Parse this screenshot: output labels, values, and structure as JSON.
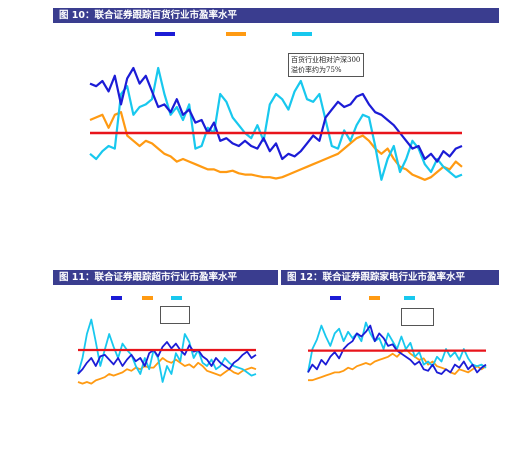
{
  "figures": {
    "main": {
      "title": "图 10：联合证券跟踪百货行业市盈率水平",
      "annotation": "百货行业相对沪深300溢价率约为75%"
    },
    "left": {
      "title": "图 11：联合证券跟踪超市行业市盈率水平",
      "annotation": ""
    },
    "right": {
      "title": "图 12：联合证券跟踪家电行业市盈率水平",
      "annotation": ""
    }
  },
  "colors": {
    "title_bg": "#3a3d8f",
    "blue": "#1c1cd6",
    "orange": "#ff9a12",
    "cyan": "#18c8ee",
    "red": "#e8141b"
  },
  "chart_data": [
    {
      "type": "line",
      "title": "图 10：联合证券跟踪百货行业市盈率水平",
      "x": [
        0,
        1,
        2,
        3,
        4,
        5,
        6,
        7,
        8,
        9,
        10,
        11,
        12,
        13,
        14,
        15,
        16,
        17,
        18,
        19,
        20,
        21,
        22,
        23,
        24,
        25,
        26,
        27,
        28,
        29,
        30,
        31,
        32,
        33,
        34,
        35,
        36,
        37,
        38,
        39,
        40,
        41,
        42,
        43,
        44,
        45,
        46,
        47,
        48,
        49,
        50,
        51,
        52,
        53,
        54,
        55,
        56,
        57,
        58,
        59,
        60
      ],
      "ylim": [
        0,
        100
      ],
      "grid": false,
      "series": [
        {
          "color": "blue",
          "values": [
            78,
            76,
            80,
            72,
            84,
            62,
            82,
            90,
            78,
            84,
            72,
            60,
            62,
            56,
            66,
            54,
            58,
            48,
            50,
            40,
            48,
            34,
            36,
            32,
            30,
            34,
            30,
            28,
            36,
            26,
            32,
            20,
            24,
            22,
            26,
            32,
            38,
            34,
            52,
            58,
            64,
            60,
            62,
            68,
            70,
            62,
            56,
            54,
            50,
            46,
            40,
            34,
            28,
            30,
            20,
            24,
            18,
            26,
            22,
            28,
            30
          ]
        },
        {
          "color": "orange",
          "values": [
            50,
            52,
            54,
            44,
            54,
            56,
            38,
            34,
            30,
            34,
            32,
            28,
            24,
            22,
            18,
            20,
            18,
            16,
            14,
            12,
            12,
            10,
            10,
            11,
            9,
            8,
            8,
            7,
            6,
            6,
            5,
            6,
            8,
            10,
            12,
            14,
            16,
            18,
            20,
            22,
            24,
            28,
            32,
            36,
            38,
            34,
            28,
            24,
            28,
            20,
            14,
            12,
            8,
            6,
            4,
            6,
            10,
            14,
            12,
            18,
            14
          ]
        },
        {
          "color": "cyan",
          "values": [
            24,
            20,
            26,
            30,
            28,
            70,
            76,
            54,
            60,
            62,
            66,
            90,
            70,
            54,
            60,
            50,
            62,
            28,
            30,
            44,
            40,
            70,
            64,
            52,
            46,
            40,
            36,
            46,
            34,
            62,
            70,
            66,
            58,
            72,
            80,
            66,
            64,
            70,
            50,
            30,
            28,
            42,
            34,
            46,
            54,
            52,
            30,
            4,
            20,
            30,
            10,
            20,
            34,
            28,
            16,
            10,
            20,
            14,
            10,
            6,
            8
          ]
        },
        {
          "color": "red",
          "values": [
            40,
            40,
            40,
            40,
            40,
            40,
            40,
            40,
            40,
            40,
            40,
            40,
            40,
            40,
            40,
            40,
            40,
            40,
            40,
            40,
            40,
            40,
            40,
            40,
            40,
            40,
            40,
            40,
            40,
            40,
            40,
            40,
            40,
            40,
            40,
            40,
            40,
            40,
            40,
            40,
            40,
            40,
            40,
            40,
            40,
            40,
            40,
            40,
            40,
            40,
            40,
            40,
            40,
            40,
            40,
            40,
            40,
            40,
            40,
            40,
            40
          ]
        }
      ]
    },
    {
      "type": "line",
      "title": "图 11：联合证券跟踪超市行业市盈率水平",
      "x": [
        0,
        1,
        2,
        3,
        4,
        5,
        6,
        7,
        8,
        9,
        10,
        11,
        12,
        13,
        14,
        15,
        16,
        17,
        18,
        19,
        20,
        21,
        22,
        23,
        24,
        25,
        26,
        27,
        28,
        29,
        30,
        31,
        32,
        33,
        34,
        35,
        36,
        37,
        38,
        39,
        40
      ],
      "ylim": [
        0,
        100
      ],
      "grid": false,
      "series": [
        {
          "color": "blue",
          "values": [
            20,
            26,
            34,
            40,
            30,
            42,
            44,
            38,
            32,
            40,
            30,
            38,
            44,
            36,
            40,
            30,
            46,
            50,
            42,
            54,
            60,
            52,
            58,
            50,
            44,
            56,
            48,
            50,
            42,
            38,
            30,
            40,
            34,
            30,
            26,
            34,
            38,
            44,
            48,
            40,
            44
          ]
        },
        {
          "color": "orange",
          "values": [
            10,
            8,
            10,
            8,
            12,
            14,
            16,
            20,
            18,
            20,
            22,
            26,
            24,
            28,
            26,
            30,
            28,
            28,
            34,
            40,
            36,
            34,
            38,
            34,
            30,
            32,
            28,
            34,
            30,
            24,
            22,
            20,
            18,
            22,
            26,
            22,
            20,
            24,
            26,
            28,
            26
          ]
        },
        {
          "color": "cyan",
          "values": [
            20,
            40,
            70,
            88,
            60,
            30,
            50,
            70,
            54,
            40,
            58,
            50,
            44,
            30,
            20,
            40,
            26,
            50,
            40,
            10,
            30,
            20,
            46,
            36,
            70,
            60,
            40,
            50,
            34,
            30,
            38,
            26,
            30,
            40,
            34,
            30,
            28,
            26,
            22,
            18,
            20
          ]
        },
        {
          "color": "red",
          "values": [
            50,
            50,
            50,
            50,
            50,
            50,
            50,
            50,
            50,
            50,
            50,
            50,
            50,
            50,
            50,
            50,
            50,
            50,
            50,
            50,
            50,
            50,
            50,
            50,
            50,
            50,
            50,
            50,
            50,
            50,
            50,
            50,
            50,
            50,
            50,
            50,
            50,
            50,
            50,
            50,
            50
          ]
        }
      ]
    },
    {
      "type": "line",
      "title": "图 12：联合证券跟踪家电行业市盈率水平",
      "x": [
        0,
        1,
        2,
        3,
        4,
        5,
        6,
        7,
        8,
        9,
        10,
        11,
        12,
        13,
        14,
        15,
        16,
        17,
        18,
        19,
        20,
        21,
        22,
        23,
        24,
        25,
        26,
        27,
        28,
        29,
        30,
        31,
        32,
        33,
        34,
        35,
        36,
        37,
        38,
        39,
        40
      ],
      "ylim": [
        0,
        100
      ],
      "grid": false,
      "series": [
        {
          "color": "blue",
          "values": [
            20,
            30,
            24,
            36,
            30,
            40,
            46,
            38,
            50,
            56,
            60,
            70,
            66,
            72,
            80,
            60,
            70,
            64,
            54,
            56,
            48,
            44,
            40,
            36,
            30,
            34,
            24,
            22,
            30,
            20,
            18,
            24,
            20,
            30,
            26,
            34,
            24,
            30,
            20,
            26,
            30
          ]
        },
        {
          "color": "orange",
          "values": [
            10,
            10,
            12,
            14,
            16,
            18,
            20,
            20,
            22,
            26,
            24,
            28,
            30,
            32,
            30,
            34,
            36,
            38,
            40,
            44,
            40,
            46,
            50,
            44,
            40,
            36,
            38,
            30,
            34,
            28,
            26,
            24,
            20,
            18,
            24,
            22,
            20,
            24,
            28,
            24,
            28
          ]
        },
        {
          "color": "cyan",
          "values": [
            20,
            50,
            62,
            80,
            66,
            54,
            70,
            76,
            60,
            72,
            64,
            70,
            60,
            84,
            70,
            60,
            64,
            50,
            70,
            60,
            50,
            66,
            50,
            58,
            40,
            46,
            30,
            34,
            28,
            40,
            34,
            50,
            40,
            46,
            36,
            50,
            38,
            30,
            28,
            30,
            26
          ]
        },
        {
          "color": "red",
          "values": [
            48,
            48,
            48,
            48,
            48,
            48,
            48,
            48,
            48,
            48,
            48,
            48,
            48,
            48,
            48,
            48,
            48,
            48,
            48,
            48,
            48,
            48,
            48,
            48,
            48,
            48,
            48,
            48,
            48,
            48,
            48,
            48,
            48,
            48,
            48,
            48,
            48,
            48,
            48,
            48,
            48
          ]
        }
      ]
    }
  ]
}
